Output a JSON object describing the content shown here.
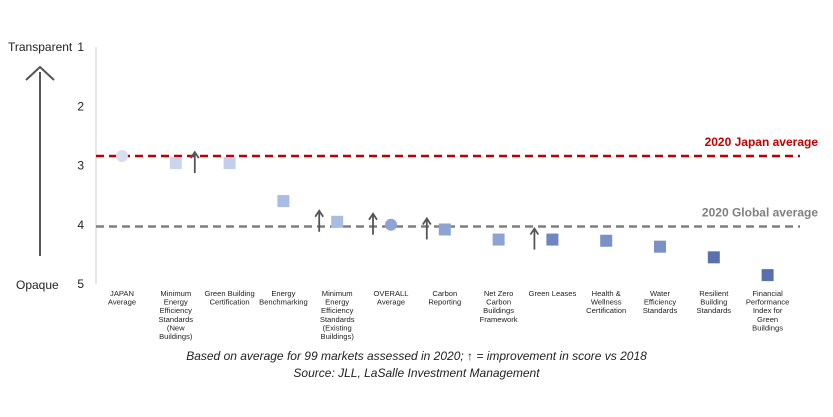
{
  "chart_data": {
    "type": "scatter",
    "y_axis": {
      "ticks": [
        "1",
        "2",
        "3",
        "4",
        "5"
      ],
      "range": [
        1,
        5
      ],
      "inverted": true,
      "top_label": "Transparent",
      "bottom_label": "Opaque"
    },
    "categories": [
      "JAPAN Average",
      "Minimum Energy Efficiency Standards (New Buildings)",
      "Green Building Certification",
      "Energy Benchmarking",
      "Minimum Energy Efficiency Standards (Existing Buildings)",
      "OVERALL Average",
      "Carbon Reporting",
      "Net Zero Carbon Buildings Framework",
      "Green Leases",
      "Health & Wellness Certification",
      "Water Efficiency Standards",
      "Resilient Building Standards",
      "Financial Performance Index for Green Buildings"
    ],
    "category_label_lines": [
      [
        "JAPAN",
        "Average"
      ],
      [
        "Minimum",
        "Energy",
        "Efficiency",
        "Standards",
        "(New",
        "Buildings)"
      ],
      [
        "Green Building",
        "Certification"
      ],
      [
        "Energy",
        "Benchmarking"
      ],
      [
        "Minimum",
        "Energy",
        "Efficiency",
        "Standards",
        "(Existing",
        "Buildings)"
      ],
      [
        "OVERALL",
        "Average"
      ],
      [
        "Carbon",
        "Reporting"
      ],
      [
        "Net Zero",
        "Carbon",
        "Buildings",
        "Framework"
      ],
      [
        "Green Leases"
      ],
      [
        "Health &",
        "Wellness",
        "Certification"
      ],
      [
        "Water",
        "Efficiency",
        "Standards"
      ],
      [
        "Resilient",
        "Building",
        "Standards"
      ],
      [
        "Financial",
        "Performance",
        "Index for",
        "Green",
        "Buildings"
      ]
    ],
    "values": [
      2.84,
      2.96,
      2.96,
      3.6,
      3.95,
      4.0,
      4.08,
      4.25,
      4.25,
      4.27,
      4.37,
      4.55,
      4.85
    ],
    "markers": [
      "circle",
      "square",
      "square",
      "square",
      "square",
      "circle",
      "square",
      "square",
      "square",
      "square",
      "square",
      "square",
      "square"
    ],
    "colors": [
      "#d6def0",
      "#c9d5ee",
      "#c3cfea",
      "#a9bde3",
      "#a9bde3",
      "#8ca3d3",
      "#8ca3d3",
      "#8ca3d3",
      "#6f86c1",
      "#7b90c7",
      "#7b90c7",
      "#5a6fae",
      "#5a6fae"
    ],
    "improvement_arrows": [
      false,
      true,
      false,
      false,
      true,
      true,
      true,
      false,
      true,
      false,
      false,
      false,
      false
    ],
    "reference_lines": [
      {
        "label": "2020 Japan average",
        "value": 2.84,
        "color": "#c00000"
      },
      {
        "label": "2020 Global average",
        "value": 4.03,
        "color": "#7f7f7f"
      }
    ],
    "grid": false
  },
  "footnotes": {
    "line1": "Based on average for 99 markets assessed in 2020; ↑ = improvement in score vs 2018",
    "line2": "Source: JLL, LaSalle Investment Management"
  }
}
